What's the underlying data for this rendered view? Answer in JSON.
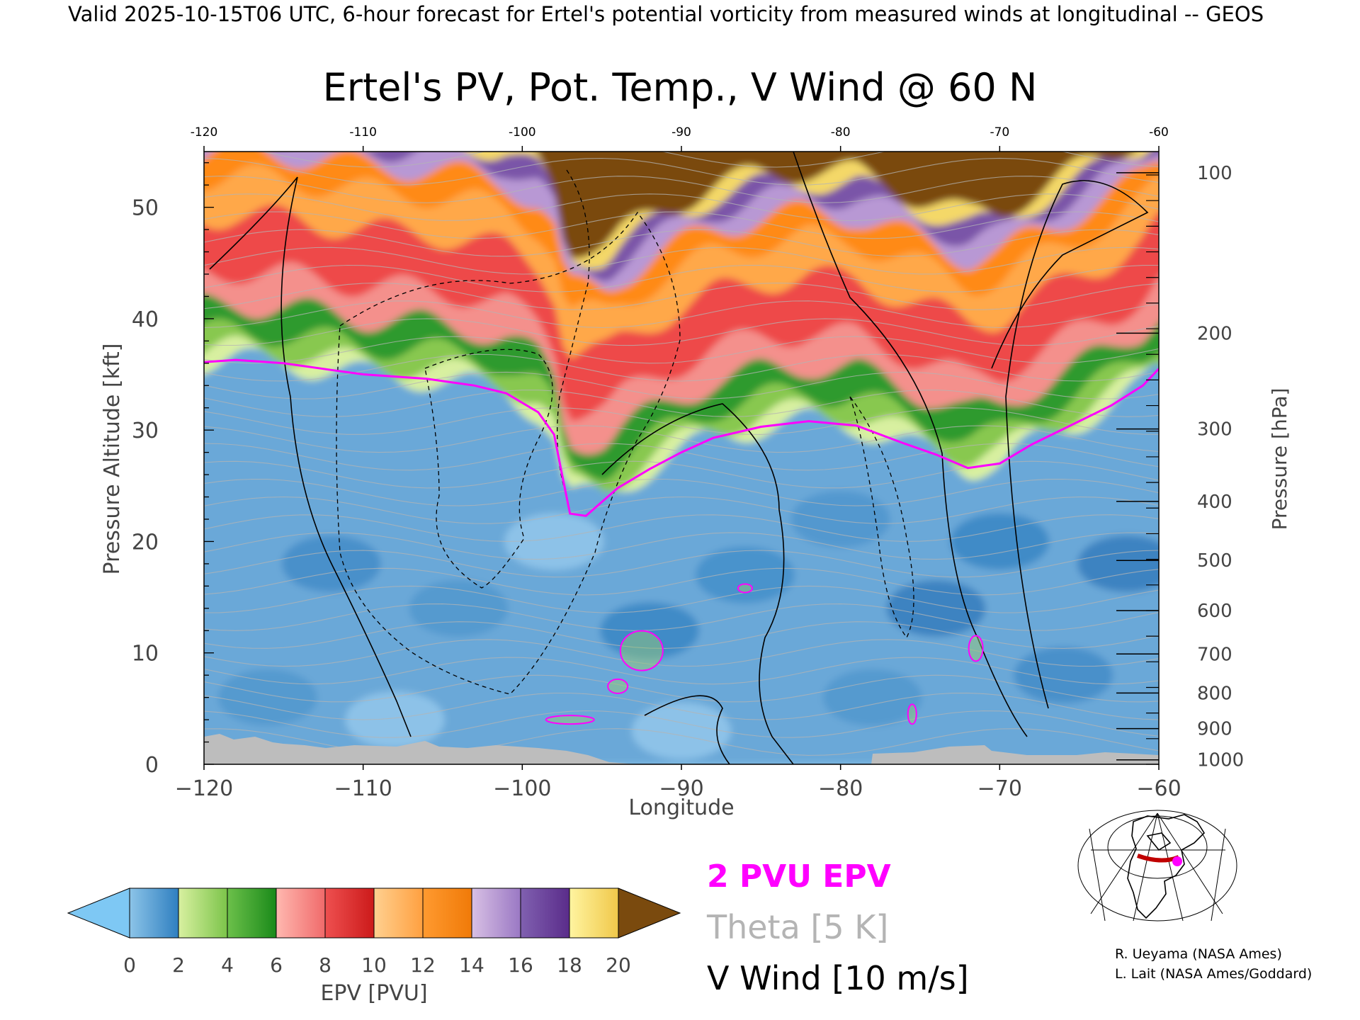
{
  "header": {
    "banner": "Valid 2025-10-15T06 UTC, 6-hour forecast for Ertel's potential vorticity from measured winds at longitudinal -- GEOS"
  },
  "chart_data": {
    "type": "heatmap",
    "title": "Ertel's PV, Pot. Temp., V Wind @ 60 N",
    "xlabel": "Longitude",
    "ylabel_left": "Pressure Altitude [kft]",
    "ylabel_right": "Pressure [hPa]",
    "xlim": [
      -120,
      -60
    ],
    "ylim": [
      0,
      55
    ],
    "x_ticks": [
      -120,
      -110,
      -100,
      -90,
      -80,
      -70,
      -60
    ],
    "y_ticks": [
      0,
      10,
      20,
      30,
      40,
      50
    ],
    "pressure_ticks": [
      {
        "label": "100",
        "kft": 53.1
      },
      {
        "label": "200",
        "kft": 38.7
      },
      {
        "label": "300",
        "kft": 30.1
      },
      {
        "label": "400",
        "kft": 23.6
      },
      {
        "label": "500",
        "kft": 18.3
      },
      {
        "label": "600",
        "kft": 13.8
      },
      {
        "label": "700",
        "kft": 9.9
      },
      {
        "label": "800",
        "kft": 6.4
      },
      {
        "label": "900",
        "kft": 3.2
      },
      {
        "label": "1000",
        "kft": 0.4
      }
    ],
    "colorbar": {
      "label": "EPV [PVU]",
      "ticks": [
        0,
        2,
        4,
        6,
        8,
        10,
        12,
        14,
        16,
        18,
        20
      ],
      "min_extend_color": "#7ec8f4",
      "max_extend_color": "#7a4a0e",
      "bands": [
        {
          "from": 0,
          "to": 2,
          "colors": [
            "#8cc4e8",
            "#2f7fc0"
          ]
        },
        {
          "from": 2,
          "to": 4,
          "colors": [
            "#d8f0a0",
            "#7cc44a"
          ]
        },
        {
          "from": 4,
          "to": 6,
          "colors": [
            "#6cc04a",
            "#1a8a1a"
          ]
        },
        {
          "from": 6,
          "to": 8,
          "colors": [
            "#ffb8b0",
            "#f06a6a"
          ]
        },
        {
          "from": 8,
          "to": 10,
          "colors": [
            "#ee5050",
            "#cc1a1a"
          ]
        },
        {
          "from": 10,
          "to": 12,
          "colors": [
            "#ffd090",
            "#ffa040"
          ]
        },
        {
          "from": 12,
          "to": 14,
          "colors": [
            "#ff9a30",
            "#f07a08"
          ]
        },
        {
          "from": 14,
          "to": 16,
          "colors": [
            "#d8c0e4",
            "#9a78c4"
          ]
        },
        {
          "from": 16,
          "to": 18,
          "colors": [
            "#8060b0",
            "#5a2c8a"
          ]
        },
        {
          "from": 18,
          "to": 20,
          "colors": [
            "#fff4a0",
            "#f0c84a"
          ]
        }
      ]
    },
    "tropopause_2pvu_kft": [
      [
        -120,
        36.1
      ],
      [
        -118,
        36.3
      ],
      [
        -115,
        36.0
      ],
      [
        -112,
        35.4
      ],
      [
        -110,
        35.0
      ],
      [
        -106,
        34.6
      ],
      [
        -103,
        34.0
      ],
      [
        -101,
        33.3
      ],
      [
        -99,
        31.6
      ],
      [
        -98,
        29.6
      ],
      [
        -97.5,
        26.0
      ],
      [
        -97,
        22.5
      ],
      [
        -96,
        22.3
      ],
      [
        -94,
        24.8
      ],
      [
        -92,
        26.5
      ],
      [
        -90,
        28.0
      ],
      [
        -88,
        29.3
      ],
      [
        -85,
        30.3
      ],
      [
        -82,
        30.8
      ],
      [
        -79,
        30.4
      ],
      [
        -76,
        28.8
      ],
      [
        -74,
        27.8
      ],
      [
        -72,
        26.6
      ],
      [
        -70,
        27.0
      ],
      [
        -68,
        28.7
      ],
      [
        -66,
        30.1
      ],
      [
        -63,
        32.2
      ],
      [
        -61,
        34.0
      ],
      [
        -60,
        35.5
      ]
    ],
    "legend": [
      {
        "label": "2 PVU EPV",
        "color": "#ff00ff"
      },
      {
        "label": "Theta [5 K]",
        "color": "#b4b4b4"
      },
      {
        "label": "V Wind [10 m/s]",
        "color": "#000000"
      }
    ]
  },
  "credits": [
    "R. Ueyama (NASA Ames)",
    "L. Lait (NASA Ames/Goddard)"
  ],
  "locator_map": {
    "latitude_marker": "60 N",
    "line_color": "#c00000",
    "dot_color": "#ff00ff"
  }
}
